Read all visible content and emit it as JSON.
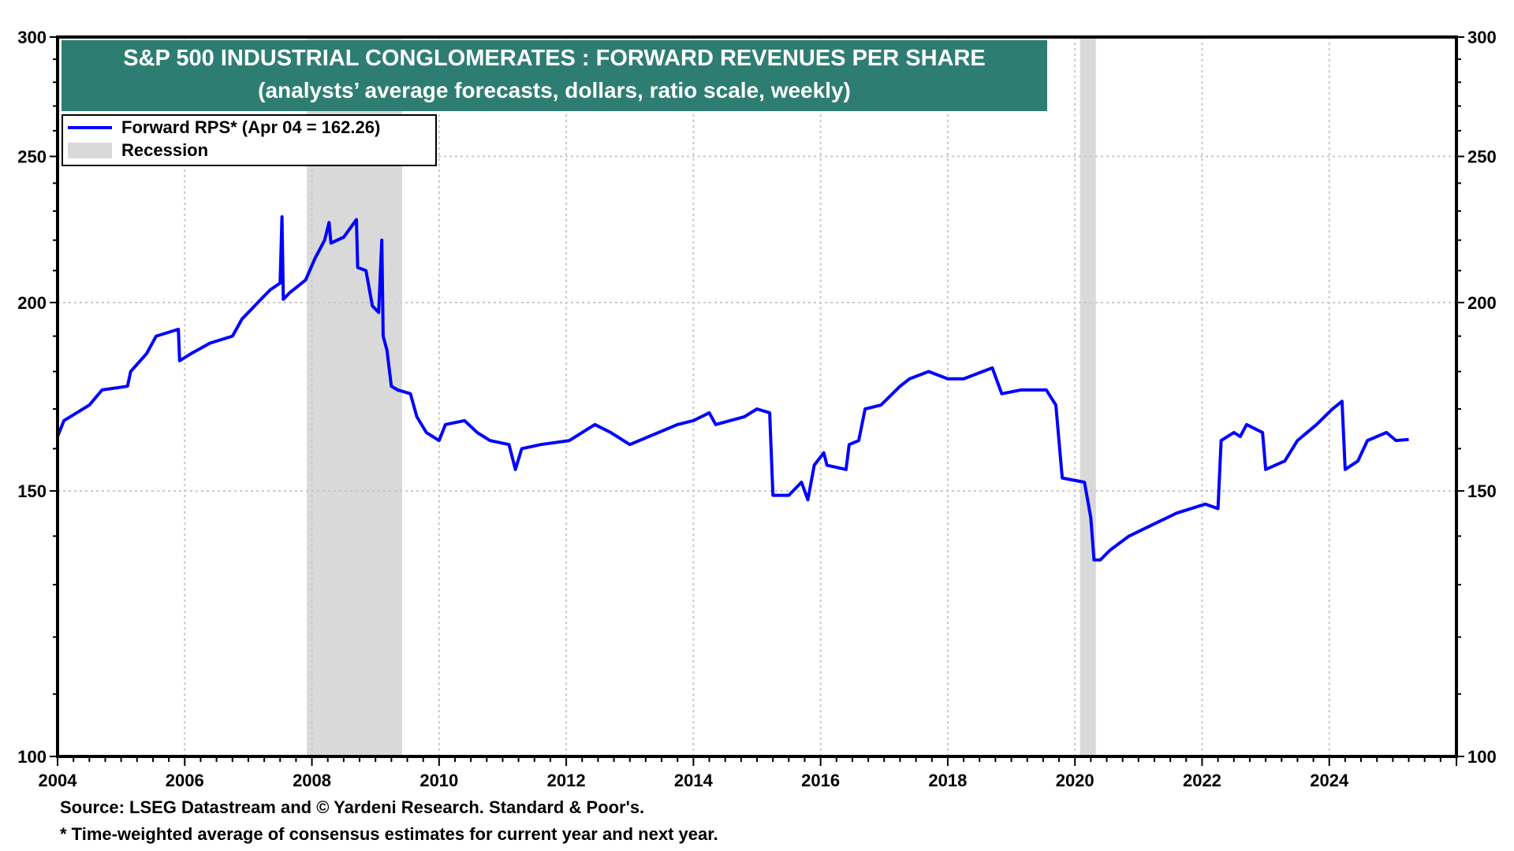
{
  "chart_data": {
    "type": "line",
    "title": "S&P 500 INDUSTRIAL CONGLOMERATES : FORWARD REVENUES PER SHARE",
    "subtitle": "(analysts’ average forecasts, dollars, ratio scale, weekly)",
    "xlabel": "",
    "ylabel": "",
    "y_scale": "log",
    "xlim": [
      2004,
      2026
    ],
    "ylim": [
      100,
      300
    ],
    "x_ticks": [
      "2004",
      "2006",
      "2008",
      "2010",
      "2012",
      "2014",
      "2016",
      "2018",
      "2020",
      "2022",
      "2024"
    ],
    "y_ticks": [
      "100",
      "150",
      "200",
      "250",
      "300"
    ],
    "grid": true,
    "legend": {
      "placement": "top-left",
      "entries": [
        "Forward RPS* (Apr 04 = 162.26)",
        "Recession"
      ]
    },
    "recessions": [
      [
        2007.92,
        2009.42
      ],
      [
        2020.08,
        2020.33
      ]
    ],
    "series": [
      {
        "name": "Forward RPS*",
        "color": "#0000ff",
        "points": [
          [
            2004.0,
            163
          ],
          [
            2004.1,
            167
          ],
          [
            2004.5,
            171
          ],
          [
            2004.7,
            175
          ],
          [
            2005.1,
            176
          ],
          [
            2005.15,
            180
          ],
          [
            2005.4,
            185
          ],
          [
            2005.55,
            190
          ],
          [
            2005.9,
            192
          ],
          [
            2005.92,
            183
          ],
          [
            2006.1,
            185
          ],
          [
            2006.4,
            188
          ],
          [
            2006.75,
            190
          ],
          [
            2006.9,
            195
          ],
          [
            2007.2,
            201
          ],
          [
            2007.35,
            204
          ],
          [
            2007.5,
            206
          ],
          [
            2007.53,
            228
          ],
          [
            2007.55,
            201
          ],
          [
            2007.65,
            203
          ],
          [
            2007.9,
            207
          ],
          [
            2008.05,
            214
          ],
          [
            2008.2,
            220
          ],
          [
            2008.27,
            226
          ],
          [
            2008.3,
            219
          ],
          [
            2008.5,
            221
          ],
          [
            2008.7,
            227
          ],
          [
            2008.72,
            211
          ],
          [
            2008.85,
            210
          ],
          [
            2008.95,
            199
          ],
          [
            2009.05,
            197
          ],
          [
            2009.1,
            220
          ],
          [
            2009.12,
            190
          ],
          [
            2009.18,
            186
          ],
          [
            2009.25,
            176
          ],
          [
            2009.35,
            175
          ],
          [
            2009.55,
            174
          ],
          [
            2009.65,
            168
          ],
          [
            2009.8,
            164
          ],
          [
            2010.0,
            162
          ],
          [
            2010.1,
            166
          ],
          [
            2010.4,
            167
          ],
          [
            2010.6,
            164
          ],
          [
            2010.8,
            162
          ],
          [
            2011.1,
            161
          ],
          [
            2011.2,
            155
          ],
          [
            2011.3,
            160
          ],
          [
            2011.6,
            161
          ],
          [
            2012.05,
            162
          ],
          [
            2012.45,
            166
          ],
          [
            2012.7,
            164
          ],
          [
            2013.0,
            161
          ],
          [
            2013.3,
            163
          ],
          [
            2013.75,
            166
          ],
          [
            2014.0,
            167
          ],
          [
            2014.25,
            169
          ],
          [
            2014.35,
            166
          ],
          [
            2014.8,
            168
          ],
          [
            2015.0,
            170
          ],
          [
            2015.2,
            169
          ],
          [
            2015.25,
            149
          ],
          [
            2015.5,
            149
          ],
          [
            2015.7,
            152
          ],
          [
            2015.8,
            148
          ],
          [
            2015.9,
            156
          ],
          [
            2016.05,
            159
          ],
          [
            2016.1,
            156
          ],
          [
            2016.4,
            155
          ],
          [
            2016.45,
            161
          ],
          [
            2016.6,
            162
          ],
          [
            2016.7,
            170
          ],
          [
            2016.95,
            171
          ],
          [
            2017.25,
            176
          ],
          [
            2017.4,
            178
          ],
          [
            2017.7,
            180
          ],
          [
            2018.0,
            178
          ],
          [
            2018.25,
            178
          ],
          [
            2018.7,
            181
          ],
          [
            2018.85,
            174
          ],
          [
            2019.15,
            175
          ],
          [
            2019.55,
            175
          ],
          [
            2019.7,
            171
          ],
          [
            2019.8,
            153
          ],
          [
            2020.15,
            152
          ],
          [
            2020.25,
            144
          ],
          [
            2020.3,
            135
          ],
          [
            2020.4,
            135
          ],
          [
            2020.55,
            137
          ],
          [
            2020.85,
            140
          ],
          [
            2021.3,
            143
          ],
          [
            2021.6,
            145
          ],
          [
            2022.05,
            147
          ],
          [
            2022.25,
            146
          ],
          [
            2022.3,
            162
          ],
          [
            2022.5,
            164
          ],
          [
            2022.6,
            163
          ],
          [
            2022.7,
            166
          ],
          [
            2022.95,
            164
          ],
          [
            2023.0,
            155
          ],
          [
            2023.3,
            157
          ],
          [
            2023.5,
            162
          ],
          [
            2023.8,
            166
          ],
          [
            2024.05,
            170
          ],
          [
            2024.2,
            172
          ],
          [
            2024.25,
            155
          ],
          [
            2024.45,
            157
          ],
          [
            2024.6,
            162
          ],
          [
            2024.9,
            164
          ],
          [
            2025.05,
            162
          ],
          [
            2025.25,
            162.26
          ]
        ]
      }
    ]
  },
  "footer": {
    "source": "Source: LSEG Datastream and © Yardeni Research. Standard & Poor's.",
    "note": "* Time-weighted average of consensus estimates for current year and next year."
  },
  "colors": {
    "title_bg": "#2e7d72",
    "line": "#0000ff",
    "recession": "#d9d9d9"
  }
}
